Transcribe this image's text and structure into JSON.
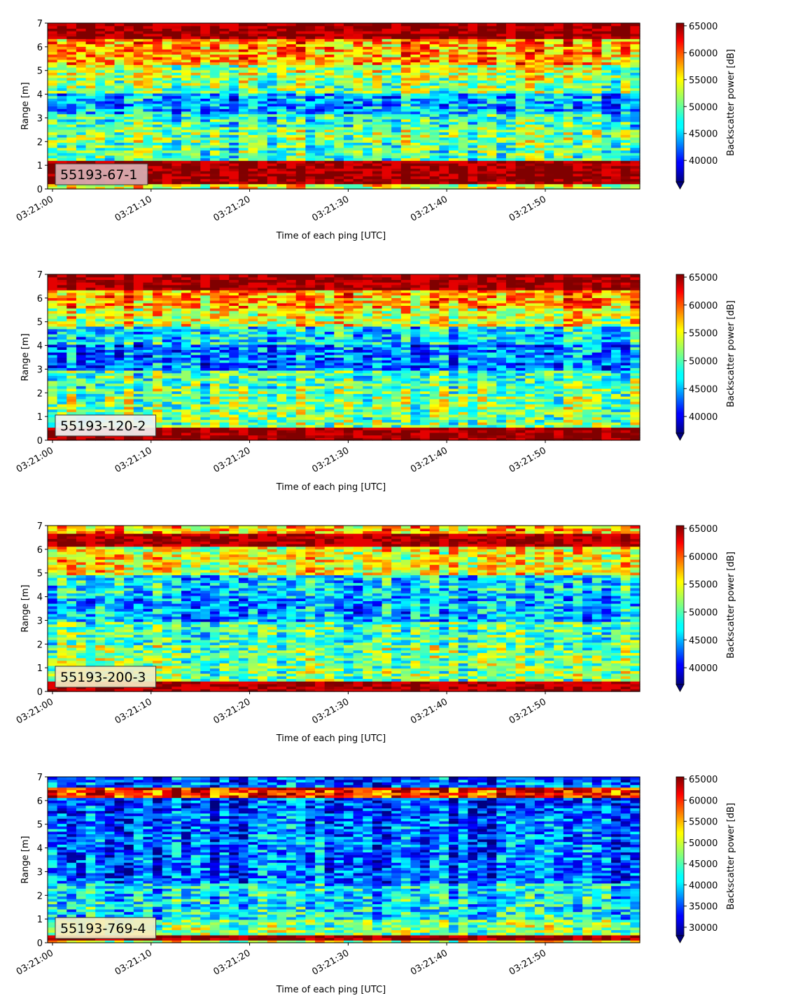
{
  "chart_data": [
    {
      "type": "heatmap",
      "tag": "55193-67-1",
      "xlabel": "Time of each ping [UTC]",
      "ylabel": "Range [m]",
      "ylim": [
        0,
        7
      ],
      "yticks": [
        "0",
        "1",
        "2",
        "3",
        "4",
        "5",
        "6",
        "7"
      ],
      "xticks": [
        "03:21:00",
        "03:21:10",
        "03:21:20",
        "03:21:30",
        "03:21:40",
        "03:21:50"
      ],
      "colorbar": {
        "label": "Backscatter power [dB]",
        "range": [
          36000,
          65500
        ],
        "ticks": [
          "40000",
          "45000",
          "50000",
          "55000",
          "60000",
          "65000"
        ],
        "extend": "min",
        "colormap": "jet"
      },
      "tag_box_color": "#d9b0b4",
      "bands": [
        {
          "range_m": [
            0,
            0.2
          ],
          "level": 0.6
        },
        {
          "range_m": [
            0.2,
            0.8
          ],
          "level": 1.0
        },
        {
          "range_m": [
            0.8,
            1.25
          ],
          "level": 0.95
        },
        {
          "range_m": [
            1.25,
            2.0
          ],
          "level": 0.45
        },
        {
          "range_m": [
            2.0,
            2.6
          ],
          "level": 0.5
        },
        {
          "range_m": [
            2.6,
            3.2
          ],
          "level": 0.42
        },
        {
          "range_m": [
            3.2,
            4.0
          ],
          "level": 0.28
        },
        {
          "range_m": [
            4.0,
            4.6
          ],
          "level": 0.5
        },
        {
          "range_m": [
            4.6,
            5.3
          ],
          "level": 0.55
        },
        {
          "range_m": [
            5.3,
            6.3
          ],
          "level": 0.72
        },
        {
          "range_m": [
            6.3,
            7.0
          ],
          "level": 0.98
        }
      ]
    },
    {
      "type": "heatmap",
      "tag": "55193-120-2",
      "xlabel": "Time of each ping [UTC]",
      "ylabel": "Range [m]",
      "ylim": [
        0,
        7
      ],
      "yticks": [
        "0",
        "1",
        "2",
        "3",
        "4",
        "5",
        "6",
        "7"
      ],
      "xticks": [
        "03:21:00",
        "03:21:10",
        "03:21:20",
        "03:21:30",
        "03:21:40",
        "03:21:50"
      ],
      "colorbar": {
        "label": "Backscatter power [dB]",
        "range": [
          37000,
          65500
        ],
        "ticks": [
          "40000",
          "45000",
          "50000",
          "55000",
          "60000",
          "65000"
        ],
        "extend": "min",
        "colormap": "jet"
      },
      "tag_box_color": "#f2f2f2",
      "bands": [
        {
          "range_m": [
            0,
            0.55
          ],
          "level": 1.0
        },
        {
          "range_m": [
            0.55,
            2.2
          ],
          "level": 0.5
        },
        {
          "range_m": [
            2.2,
            2.9
          ],
          "level": 0.45
        },
        {
          "range_m": [
            2.9,
            4.0
          ],
          "level": 0.25
        },
        {
          "range_m": [
            4.0,
            4.8
          ],
          "level": 0.35
        },
        {
          "range_m": [
            4.8,
            5.6
          ],
          "level": 0.6
        },
        {
          "range_m": [
            5.6,
            6.3
          ],
          "level": 0.72
        },
        {
          "range_m": [
            6.3,
            7.0
          ],
          "level": 0.98
        }
      ]
    },
    {
      "type": "heatmap",
      "tag": "55193-200-3",
      "xlabel": "Time of each ping [UTC]",
      "ylabel": "Range [m]",
      "ylim": [
        0,
        7
      ],
      "yticks": [
        "0",
        "1",
        "2",
        "3",
        "4",
        "5",
        "6",
        "7"
      ],
      "xticks": [
        "03:21:00",
        "03:21:10",
        "03:21:20",
        "03:21:30",
        "03:21:40",
        "03:21:50"
      ],
      "colorbar": {
        "label": "Backscatter power [dB]",
        "range": [
          37000,
          65500
        ],
        "ticks": [
          "40000",
          "45000",
          "50000",
          "55000",
          "60000",
          "65000"
        ],
        "extend": "min",
        "colormap": "jet"
      },
      "tag_box_color": "#f4ecc4",
      "bands": [
        {
          "range_m": [
            0,
            0.45
          ],
          "level": 0.95
        },
        {
          "range_m": [
            0.45,
            2.0
          ],
          "level": 0.5
        },
        {
          "range_m": [
            2.0,
            2.9
          ],
          "level": 0.45
        },
        {
          "range_m": [
            2.9,
            4.0
          ],
          "level": 0.3
        },
        {
          "range_m": [
            4.0,
            4.9
          ],
          "level": 0.35
        },
        {
          "range_m": [
            4.9,
            6.1
          ],
          "level": 0.62
        },
        {
          "range_m": [
            6.1,
            6.7
          ],
          "level": 0.95
        },
        {
          "range_m": [
            6.7,
            7.0
          ],
          "level": 0.7
        }
      ]
    },
    {
      "type": "heatmap",
      "tag": "55193-769-4",
      "xlabel": "Time of each ping [UTC]",
      "ylabel": "Range [m]",
      "ylim": [
        0,
        7
      ],
      "yticks": [
        "0",
        "1",
        "2",
        "3",
        "4",
        "5",
        "6",
        "7"
      ],
      "xticks": [
        "03:21:00",
        "03:21:10",
        "03:21:20",
        "03:21:30",
        "03:21:40",
        "03:21:50"
      ],
      "colorbar": {
        "label": "Backscatter power [dB]",
        "range": [
          28000,
          65500
        ],
        "ticks": [
          "30000",
          "35000",
          "40000",
          "45000",
          "50000",
          "55000",
          "60000",
          "65000"
        ],
        "extend": "min",
        "colormap": "jet"
      },
      "tag_box_color": "#f4ecc4",
      "bands": [
        {
          "range_m": [
            0,
            0.15
          ],
          "level": 0.55
        },
        {
          "range_m": [
            0.15,
            0.3
          ],
          "level": 1.0
        },
        {
          "range_m": [
            0.3,
            1.0
          ],
          "level": 0.5
        },
        {
          "range_m": [
            1.0,
            2.5
          ],
          "level": 0.35
        },
        {
          "range_m": [
            2.5,
            5.5
          ],
          "level": 0.22
        },
        {
          "range_m": [
            5.5,
            6.1
          ],
          "level": 0.18
        },
        {
          "range_m": [
            6.1,
            6.6
          ],
          "level": 0.85
        },
        {
          "range_m": [
            6.6,
            7.0
          ],
          "level": 0.2
        }
      ]
    }
  ]
}
